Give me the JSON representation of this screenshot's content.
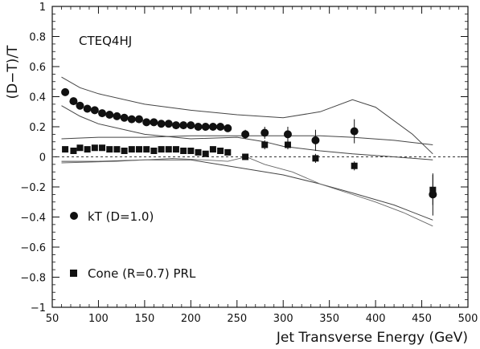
{
  "chart_data": {
    "type": "scatter",
    "xlabel": "Jet Transverse Energy (GeV)",
    "ylabel": "(D−T)/T",
    "annotation": "CTEQ4HJ",
    "xlim": [
      50,
      500
    ],
    "ylim": [
      -1,
      1
    ],
    "x_ticks": [
      50,
      100,
      150,
      200,
      250,
      300,
      350,
      400,
      450,
      500
    ],
    "y_ticks": [
      -1,
      -0.8,
      -0.6,
      -0.4,
      -0.2,
      0,
      0.2,
      0.4,
      0.6,
      0.8,
      1
    ],
    "y_tick_labels": [
      "−1",
      "−0.8",
      "−0.6",
      "−0.4",
      "−0.2",
      "0",
      "0.2",
      "0.4",
      "0.6",
      "0.8",
      "1"
    ],
    "zero_line": "dashed",
    "series": [
      {
        "name": "kT (D=1.0)",
        "marker": "circle",
        "points": [
          {
            "x": 64,
            "y": 0.43
          },
          {
            "x": 73,
            "y": 0.37
          },
          {
            "x": 80,
            "y": 0.34
          },
          {
            "x": 88,
            "y": 0.32
          },
          {
            "x": 96,
            "y": 0.31
          },
          {
            "x": 104,
            "y": 0.29
          },
          {
            "x": 112,
            "y": 0.28
          },
          {
            "x": 120,
            "y": 0.27
          },
          {
            "x": 128,
            "y": 0.26
          },
          {
            "x": 136,
            "y": 0.25
          },
          {
            "x": 144,
            "y": 0.25
          },
          {
            "x": 152,
            "y": 0.23
          },
          {
            "x": 160,
            "y": 0.23
          },
          {
            "x": 168,
            "y": 0.22
          },
          {
            "x": 176,
            "y": 0.22
          },
          {
            "x": 184,
            "y": 0.21
          },
          {
            "x": 192,
            "y": 0.21
          },
          {
            "x": 200,
            "y": 0.21
          },
          {
            "x": 208,
            "y": 0.2
          },
          {
            "x": 216,
            "y": 0.2
          },
          {
            "x": 224,
            "y": 0.2
          },
          {
            "x": 232,
            "y": 0.2
          },
          {
            "x": 240,
            "y": 0.19
          },
          {
            "x": 259,
            "y": 0.15,
            "err": 0.03
          },
          {
            "x": 280,
            "y": 0.16,
            "err": 0.04
          },
          {
            "x": 305,
            "y": 0.15,
            "err": 0.05
          },
          {
            "x": 335,
            "y": 0.11,
            "err": 0.07
          },
          {
            "x": 377,
            "y": 0.17,
            "err": 0.08
          },
          {
            "x": 462,
            "y": -0.25,
            "err": 0.14
          }
        ]
      },
      {
        "name": "Cone (R=0.7) PRL",
        "marker": "square",
        "points": [
          {
            "x": 64,
            "y": 0.05
          },
          {
            "x": 73,
            "y": 0.04
          },
          {
            "x": 80,
            "y": 0.06
          },
          {
            "x": 88,
            "y": 0.05
          },
          {
            "x": 96,
            "y": 0.06
          },
          {
            "x": 104,
            "y": 0.06
          },
          {
            "x": 112,
            "y": 0.05
          },
          {
            "x": 120,
            "y": 0.05
          },
          {
            "x": 128,
            "y": 0.04
          },
          {
            "x": 136,
            "y": 0.05
          },
          {
            "x": 144,
            "y": 0.05
          },
          {
            "x": 152,
            "y": 0.05
          },
          {
            "x": 160,
            "y": 0.04
          },
          {
            "x": 168,
            "y": 0.05
          },
          {
            "x": 176,
            "y": 0.05
          },
          {
            "x": 184,
            "y": 0.05
          },
          {
            "x": 192,
            "y": 0.04
          },
          {
            "x": 200,
            "y": 0.04
          },
          {
            "x": 208,
            "y": 0.03
          },
          {
            "x": 216,
            "y": 0.02
          },
          {
            "x": 224,
            "y": 0.05
          },
          {
            "x": 232,
            "y": 0.04
          },
          {
            "x": 240,
            "y": 0.03
          },
          {
            "x": 259,
            "y": 0.0,
            "err": 0.02
          },
          {
            "x": 280,
            "y": 0.08,
            "err": 0.03
          },
          {
            "x": 305,
            "y": 0.08,
            "err": 0.03
          },
          {
            "x": 335,
            "y": -0.01,
            "err": 0.03
          },
          {
            "x": 377,
            "y": -0.06,
            "err": 0.03
          },
          {
            "x": 462,
            "y": -0.22,
            "err": 0.1
          }
        ]
      }
    ],
    "bands": [
      {
        "name": "kT systematic band",
        "upper": [
          [
            60,
            0.53
          ],
          [
            80,
            0.46
          ],
          [
            100,
            0.42
          ],
          [
            150,
            0.35
          ],
          [
            200,
            0.31
          ],
          [
            250,
            0.28
          ],
          [
            300,
            0.26
          ],
          [
            340,
            0.3
          ],
          [
            375,
            0.38
          ],
          [
            400,
            0.33
          ],
          [
            440,
            0.15
          ],
          [
            462,
            0.02
          ]
        ],
        "lower": [
          [
            60,
            0.34
          ],
          [
            80,
            0.27
          ],
          [
            100,
            0.22
          ],
          [
            150,
            0.15
          ],
          [
            200,
            0.12
          ],
          [
            250,
            0.13
          ],
          [
            280,
            0.1
          ],
          [
            300,
            0.07
          ],
          [
            340,
            0.04
          ],
          [
            375,
            0.02
          ],
          [
            420,
            0.0
          ],
          [
            462,
            -0.02
          ]
        ]
      },
      {
        "name": "cone systematic band",
        "upper": [
          [
            60,
            0.12
          ],
          [
            100,
            0.13
          ],
          [
            150,
            0.13
          ],
          [
            200,
            0.14
          ],
          [
            250,
            0.14
          ],
          [
            300,
            0.14
          ],
          [
            340,
            0.14
          ],
          [
            375,
            0.13
          ],
          [
            420,
            0.11
          ],
          [
            462,
            0.08
          ]
        ],
        "lower": [
          [
            60,
            -0.03
          ],
          [
            100,
            -0.03
          ],
          [
            150,
            -0.02
          ],
          [
            200,
            -0.02
          ],
          [
            230,
            -0.05
          ],
          [
            260,
            -0.08
          ],
          [
            280,
            -0.1
          ],
          [
            300,
            -0.12
          ],
          [
            340,
            -0.18
          ],
          [
            375,
            -0.24
          ],
          [
            420,
            -0.32
          ],
          [
            462,
            -0.42
          ]
        ]
      },
      {
        "name": "wavy middle curve",
        "line": [
          [
            60,
            -0.04
          ],
          [
            120,
            -0.03
          ],
          [
            180,
            -0.01
          ],
          [
            215,
            -0.02
          ],
          [
            240,
            -0.03
          ],
          [
            260,
            0.0
          ],
          [
            280,
            -0.05
          ],
          [
            310,
            -0.1
          ],
          [
            340,
            -0.18
          ],
          [
            370,
            -0.24
          ],
          [
            400,
            -0.3
          ],
          [
            430,
            -0.37
          ],
          [
            462,
            -0.46
          ]
        ]
      }
    ]
  }
}
